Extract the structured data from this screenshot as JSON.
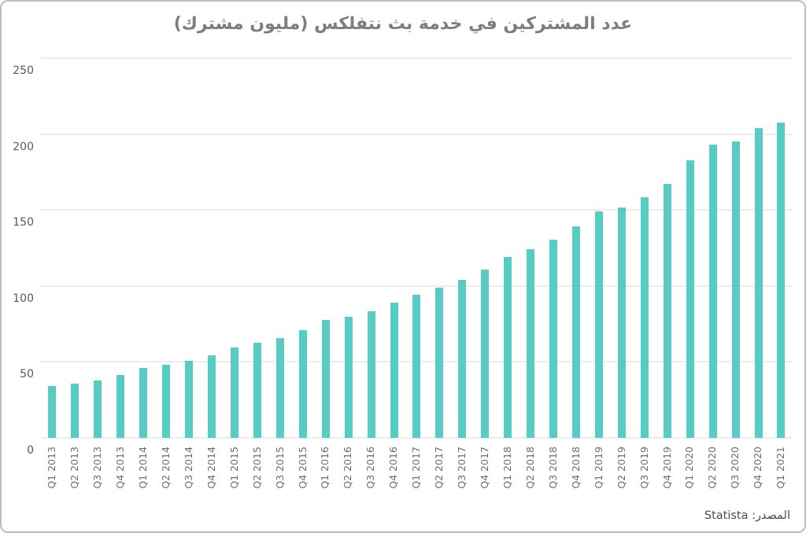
{
  "chart_data": {
    "type": "bar",
    "title": "عدد المشتركين في خدمة بث نتفلكس (مليون مشترك)",
    "source_label": "المصدر: Statista",
    "xlabel": "",
    "ylabel": "",
    "ylim": [
      0,
      250
    ],
    "yticks": [
      0,
      50,
      100,
      150,
      200,
      250
    ],
    "grid": "horizontal",
    "legend": "none",
    "bar_color": "#57ccc5",
    "grid_color": "#ececec",
    "categories": [
      "Q1 2013",
      "Q2 2013",
      "Q3 2013",
      "Q4 2013",
      "Q1 2014",
      "Q2 2014",
      "Q3 2014",
      "Q4 2014",
      "Q1 2015",
      "Q2 2015",
      "Q3 2015",
      "Q4 2015",
      "Q1 2016",
      "Q2 2016",
      "Q3 2016",
      "Q4 2016",
      "Q1 2017",
      "Q2 2017",
      "Q3 2017",
      "Q4 2017",
      "Q1 2018",
      "Q2 2018",
      "Q3 2018",
      "Q4 2018",
      "Q1 2019",
      "Q2 2019",
      "Q3 2019",
      "Q4 2019",
      "Q1 2020",
      "Q2 2020",
      "Q3 2020",
      "Q4 2020",
      "Q1 2021"
    ],
    "values": [
      34.2,
      35.6,
      38.0,
      41.4,
      46.1,
      48.0,
      50.7,
      54.5,
      59.6,
      62.7,
      66.0,
      70.8,
      77.7,
      79.9,
      83.3,
      89.1,
      94.4,
      99.0,
      104.0,
      110.6,
      118.9,
      124.4,
      130.4,
      139.3,
      148.9,
      151.6,
      158.3,
      167.1,
      182.9,
      193.0,
      195.2,
      203.7,
      207.6
    ]
  }
}
